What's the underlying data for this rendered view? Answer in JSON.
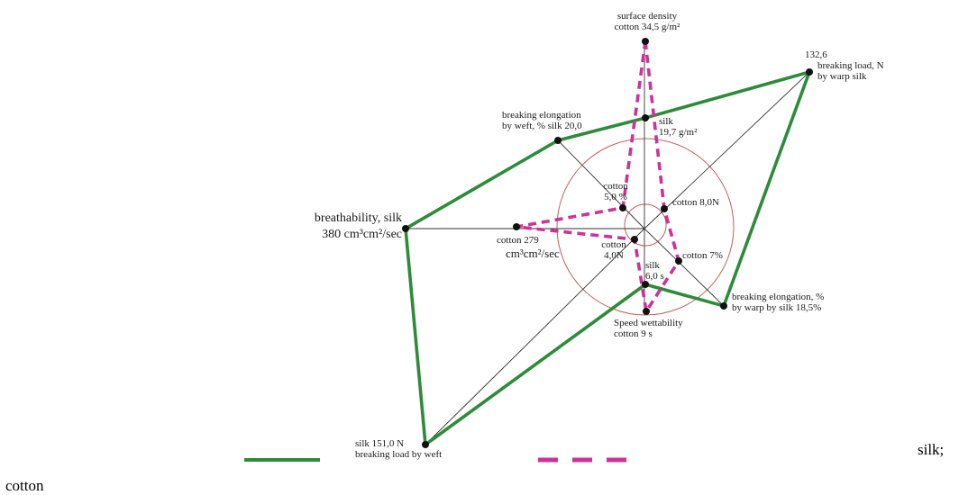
{
  "chart_data": {
    "type": "radar",
    "axes": [
      {
        "name": "surface density",
        "unit": "g/m2"
      },
      {
        "name": "breaking load by warp",
        "unit": "N"
      },
      {
        "name": "breaking elongation by warp",
        "unit": "%"
      },
      {
        "name": "Speed wettability",
        "unit": "s"
      },
      {
        "name": "breaking load by weft",
        "unit": "N"
      },
      {
        "name": "breathability",
        "unit": "cm3/cm2/sec"
      },
      {
        "name": "breaking elongation by weft",
        "unit": "%"
      }
    ],
    "series": [
      {
        "name": "silk",
        "values": [
          19.7,
          132.6,
          18.5,
          6.0,
          151.0,
          380,
          20.0
        ]
      },
      {
        "name": "cotton",
        "values": [
          34.5,
          8.0,
          7,
          9,
          4.0,
          279,
          5.0
        ]
      }
    ],
    "series_colors": {
      "silk": "#2e8b3a",
      "cotton": "#cc3399"
    },
    "axis_line_color": "#333333",
    "circle_color": "#c0605a",
    "legend": {
      "position": "bottom"
    }
  },
  "labels": [
    {
      "lines": [
        "surface density",
        "cotton 34,5 g/m²"
      ],
      "size": "small"
    },
    {
      "lines": [
        "132,6",
        "breaking load, N",
        "by warp silk"
      ],
      "size": "small"
    },
    {
      "lines": [
        "silk",
        "19,7 g/m²"
      ],
      "size": "small"
    },
    {
      "lines": [
        "breaking elongation",
        "by weft, % silk 20,0"
      ],
      "size": "small"
    },
    {
      "lines": [
        "cotton",
        "5,0 %"
      ],
      "size": "small"
    },
    {
      "lines": [
        "cotton 8,0N"
      ],
      "size": "small"
    },
    {
      "lines": [
        "breathability, silk",
        "380 cm³cm²/sec"
      ],
      "size": "big"
    },
    {
      "lines": [
        "cotton 279",
        "cm³cm²/sec"
      ],
      "size": "mixed"
    },
    {
      "lines": [
        "cotton",
        "4,0N"
      ],
      "size": "small"
    },
    {
      "lines": [
        "cotton 7%"
      ],
      "size": "small"
    },
    {
      "lines": [
        "silk",
        "6,0 s"
      ],
      "size": "small"
    },
    {
      "lines": [
        "breaking elongation, %",
        "by warp by silk 18,5%"
      ],
      "size": "small"
    },
    {
      "lines": [
        "Speed wettability",
        "cotton 9 s"
      ],
      "size": "small"
    },
    {
      "lines": [
        "silk 151,0 N",
        "breaking load by weft"
      ],
      "size": "small"
    }
  ],
  "legend_labels": {
    "silk": "silk;",
    "cotton": "cotton"
  }
}
